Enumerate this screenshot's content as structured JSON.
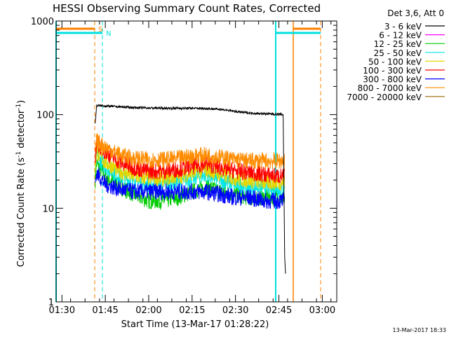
{
  "chart_data": {
    "type": "line",
    "title": "HESSI Observing Summary Count Rates, Corrected",
    "xlabel": "Start Time (13-Mar-17 01:28:22)",
    "ylabel_main": "Corrected Count Rate (s",
    "ylabel_sup1": "-1",
    "ylabel_mid": " detector",
    "ylabel_sup2": "-1",
    "ylabel_end": ")",
    "yscale": "log",
    "ylim": [
      1,
      1000
    ],
    "xlim": [
      88,
      185
    ],
    "x_ticks": [
      {
        "t": 90,
        "label": "01:30"
      },
      {
        "t": 105,
        "label": "01:45"
      },
      {
        "t": 120,
        "label": "02:00"
      },
      {
        "t": 135,
        "label": "02:15"
      },
      {
        "t": 150,
        "label": "02:30"
      },
      {
        "t": 165,
        "label": "02:45"
      },
      {
        "t": 180,
        "label": "03:00"
      }
    ],
    "y_ticks": [
      {
        "v": 1,
        "label": "1"
      },
      {
        "v": 10,
        "label": "10"
      },
      {
        "v": 100,
        "label": "100"
      },
      {
        "v": 1000,
        "label": "1000"
      }
    ],
    "legend_header": "Det 3,6, Att 0",
    "legend_position": "right",
    "timestamp": "13-Mar-2017 18:33",
    "series": [
      {
        "name": "3 - 6 keV",
        "color": "#000000",
        "x": [
          101.5,
          102,
          105,
          110,
          115,
          120,
          125,
          130,
          135,
          140,
          145,
          150,
          155,
          160,
          165,
          166.5,
          167,
          167.3
        ],
        "values": [
          80,
          125,
          124,
          121,
          119,
          118,
          117,
          117,
          117,
          116,
          114,
          108,
          104,
          102,
          101,
          100,
          3,
          2
        ]
      },
      {
        "name": "6 - 12 keV",
        "color": "#ff00ff",
        "x": [],
        "values": []
      },
      {
        "name": "12 - 25 keV",
        "color": "#00cc00",
        "x": [
          101.5,
          102,
          105,
          110,
          115,
          120,
          125,
          130,
          135,
          140,
          145,
          150,
          155,
          160,
          165,
          167
        ],
        "values": [
          20,
          30,
          22,
          17,
          14,
          12,
          12,
          13,
          15,
          17,
          15,
          14,
          13,
          13,
          13,
          12
        ]
      },
      {
        "name": "25 - 50 keV",
        "color": "#00e5e5",
        "x": [
          101.5,
          102,
          105,
          110,
          115,
          120,
          125,
          130,
          135,
          140,
          145,
          150,
          155,
          160,
          165,
          167
        ],
        "values": [
          25,
          36,
          28,
          22,
          19,
          18,
          18,
          19,
          21,
          23,
          20,
          18,
          17,
          17,
          16,
          16
        ]
      },
      {
        "name": "50 - 100 keV",
        "color": "#e6d700",
        "x": [
          101.5,
          102,
          105,
          110,
          115,
          120,
          125,
          130,
          135,
          140,
          145,
          150,
          155,
          160,
          165,
          167
        ],
        "values": [
          28,
          40,
          31,
          25,
          22,
          21,
          21,
          22,
          24,
          26,
          23,
          21,
          20,
          19,
          19,
          19
        ]
      },
      {
        "name": "100 - 300 keV",
        "color": "#ff0000",
        "x": [
          101.5,
          102,
          105,
          110,
          115,
          120,
          125,
          130,
          135,
          140,
          145,
          150,
          155,
          160,
          165,
          167
        ],
        "values": [
          35,
          50,
          40,
          31,
          27,
          25,
          25,
          26,
          28,
          30,
          27,
          25,
          24,
          23,
          22,
          22
        ]
      },
      {
        "name": "300 - 800 keV",
        "color": "#0000ff",
        "x": [
          101.5,
          102,
          105,
          110,
          115,
          120,
          125,
          130,
          135,
          140,
          145,
          150,
          155,
          160,
          165,
          167
        ],
        "values": [
          18,
          24,
          18,
          16,
          15,
          15,
          15,
          15,
          15,
          15,
          14,
          13,
          13,
          12,
          12,
          12
        ]
      },
      {
        "name": "800 - 7000 keV",
        "color": "#ff8c00",
        "x": [
          101.5,
          102,
          105,
          110,
          115,
          120,
          125,
          130,
          135,
          140,
          145,
          150,
          155,
          160,
          165,
          167
        ],
        "values": [
          40,
          52,
          45,
          37,
          34,
          33,
          33,
          34,
          36,
          37,
          35,
          33,
          32,
          32,
          32,
          32
        ]
      },
      {
        "name": "7000 - 20000 keV",
        "color": "#996600",
        "x": [],
        "values": []
      }
    ],
    "markers": [
      {
        "label": "S",
        "color": "#ff8000"
      },
      {
        "label": "N",
        "color": "#00e0e0"
      }
    ]
  }
}
